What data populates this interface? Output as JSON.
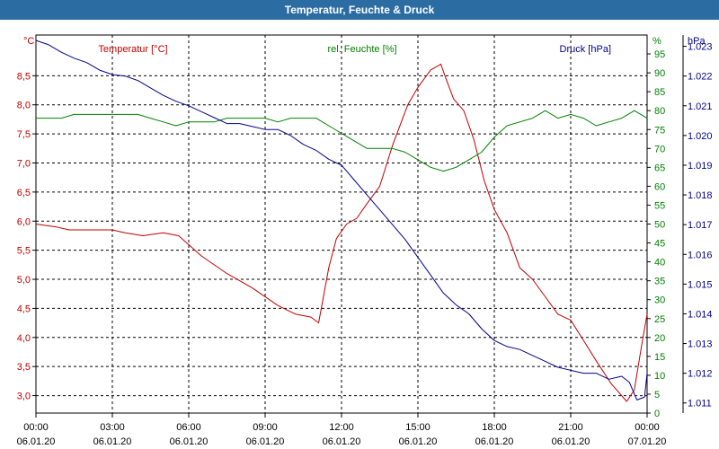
{
  "window": {
    "title": "Temperatur, Feuchte & Druck"
  },
  "chart_data": {
    "type": "line",
    "title": "Temperatur, Feuchte & Druck",
    "x_hours_range": [
      0,
      24
    ],
    "x_ticks": [
      {
        "time": "00:00",
        "date": "06.01.20"
      },
      {
        "time": "03:00",
        "date": "06.01.20"
      },
      {
        "time": "06:00",
        "date": "06.01.20"
      },
      {
        "time": "09:00",
        "date": "06.01.20"
      },
      {
        "time": "12:00",
        "date": "06.01.20"
      },
      {
        "time": "15:00",
        "date": "06.01.20"
      },
      {
        "time": "18:00",
        "date": "06.01.20"
      },
      {
        "time": "21:00",
        "date": "06.01.20"
      },
      {
        "time": "00:00",
        "date": "07.01.20"
      }
    ],
    "axes": {
      "temperature": {
        "unit": "°C",
        "label": "Temperatur [°C]",
        "color": "#c00000",
        "range": [
          2.7,
          9.2
        ],
        "ticks": [
          "3,0",
          "3,5",
          "4,0",
          "4,5",
          "5,0",
          "5,5",
          "6,0",
          "6,5",
          "7,0",
          "7,5",
          "8,0",
          "8,5"
        ],
        "tick_values": [
          3.0,
          3.5,
          4.0,
          4.5,
          5.0,
          5.5,
          6.0,
          6.5,
          7.0,
          7.5,
          8.0,
          8.5
        ]
      },
      "humidity": {
        "unit": "%",
        "label": "rel. Feuchte [%]",
        "color": "#008000",
        "range": [
          0,
          100
        ],
        "ticks": [
          "0",
          "5",
          "10",
          "15",
          "20",
          "25",
          "30",
          "35",
          "40",
          "45",
          "50",
          "55",
          "60",
          "65",
          "70",
          "75",
          "80",
          "85",
          "90",
          "95"
        ],
        "tick_values": [
          0,
          5,
          10,
          15,
          20,
          25,
          30,
          35,
          40,
          45,
          50,
          55,
          60,
          65,
          70,
          75,
          80,
          85,
          90,
          95
        ]
      },
      "pressure": {
        "unit": "hPa",
        "label": "Druck [hPa]",
        "color": "#00008b",
        "range": [
          1010.66,
          1023.38
        ],
        "ticks": [
          "1.011",
          "1.012",
          "1.013",
          "1.014",
          "1.015",
          "1.016",
          "1.017",
          "1.018",
          "1.019",
          "1.020",
          "1.021",
          "1.022",
          "1.023"
        ],
        "tick_values": [
          1011,
          1012,
          1013,
          1014,
          1015,
          1016,
          1017,
          1018,
          1019,
          1020,
          1021,
          1022,
          1023
        ]
      }
    },
    "series": [
      {
        "name": "Temperatur [°C]",
        "axis": "temperature",
        "color": "#c00000",
        "x": [
          0,
          0.8,
          1.3,
          2,
          3,
          3.5,
          4.2,
          5,
          5.6,
          6.5,
          7.5,
          8.5,
          9.5,
          10.2,
          10.8,
          11.1,
          11.5,
          11.8,
          12.2,
          12.6,
          13,
          13.5,
          14,
          14.6,
          15,
          15.5,
          15.9,
          16.1,
          16.4,
          16.8,
          17.2,
          17.6,
          18,
          18.5,
          19,
          19.5,
          20,
          20.5,
          21,
          21.5,
          22,
          22.6,
          23.2,
          23.5,
          23.8,
          24
        ],
        "values": [
          5.95,
          5.9,
          5.85,
          5.85,
          5.85,
          5.8,
          5.75,
          5.8,
          5.75,
          5.4,
          5.1,
          4.85,
          4.55,
          4.4,
          4.35,
          4.25,
          5.2,
          5.7,
          5.95,
          6.05,
          6.3,
          6.6,
          7.3,
          8.0,
          8.3,
          8.6,
          8.7,
          8.45,
          8.1,
          7.9,
          7.4,
          6.7,
          6.2,
          5.8,
          5.2,
          5.0,
          4.7,
          4.4,
          4.3,
          3.95,
          3.6,
          3.2,
          2.9,
          3.1,
          3.9,
          4.4
        ]
      },
      {
        "name": "rel. Feuchte [%]",
        "axis": "humidity",
        "color": "#008000",
        "x": [
          0,
          1,
          1.5,
          2,
          3,
          3.5,
          4,
          4.5,
          5,
          5.5,
          6,
          6.5,
          7,
          7.5,
          8,
          8.5,
          9,
          9.5,
          10,
          10.5,
          11,
          11.5,
          12,
          12.5,
          13,
          13.5,
          14,
          14.5,
          15,
          15.5,
          16,
          16.5,
          17,
          17.5,
          18,
          18.5,
          19,
          19.5,
          20,
          20.5,
          21,
          21.5,
          22,
          22.5,
          23,
          23.5,
          24
        ],
        "values": [
          78,
          78,
          79,
          79,
          79,
          79,
          79,
          78,
          77,
          76,
          77,
          77,
          77,
          78,
          78,
          78,
          78,
          77,
          78,
          78,
          78,
          76,
          74,
          72,
          70,
          70,
          70,
          69,
          67,
          65,
          64,
          65,
          67,
          69,
          73,
          76,
          77,
          78,
          80,
          78,
          79,
          78,
          76,
          77,
          78,
          80,
          78
        ]
      },
      {
        "name": "Druck [hPa]",
        "axis": "pressure",
        "color": "#00008b",
        "x": [
          0,
          0.5,
          1,
          1.5,
          2,
          2.5,
          3,
          3.5,
          4,
          4.5,
          5,
          5.5,
          6,
          6.5,
          7,
          7.5,
          8,
          8.5,
          9,
          9.5,
          10,
          10.5,
          11,
          11.5,
          12,
          12.5,
          13,
          13.5,
          14,
          14.5,
          15,
          15.5,
          16,
          16.5,
          17,
          17.5,
          18,
          18.5,
          19,
          19.5,
          20,
          20.5,
          21,
          21.5,
          22,
          22.5,
          23,
          23.3,
          23.6,
          23.9,
          24
        ],
        "values": [
          1023.2,
          1023.05,
          1022.8,
          1022.6,
          1022.45,
          1022.2,
          1022.05,
          1022.0,
          1021.85,
          1021.6,
          1021.35,
          1021.15,
          1021.0,
          1020.8,
          1020.6,
          1020.4,
          1020.4,
          1020.3,
          1020.2,
          1020.2,
          1020.0,
          1019.7,
          1019.5,
          1019.2,
          1019.0,
          1018.5,
          1018.0,
          1017.5,
          1017.0,
          1016.5,
          1015.9,
          1015.3,
          1014.7,
          1014.3,
          1014.0,
          1013.5,
          1013.1,
          1012.9,
          1012.8,
          1012.6,
          1012.4,
          1012.2,
          1012.1,
          1012.0,
          1012.0,
          1011.8,
          1011.9,
          1011.7,
          1011.1,
          1011.2,
          1012.0
        ]
      }
    ]
  }
}
